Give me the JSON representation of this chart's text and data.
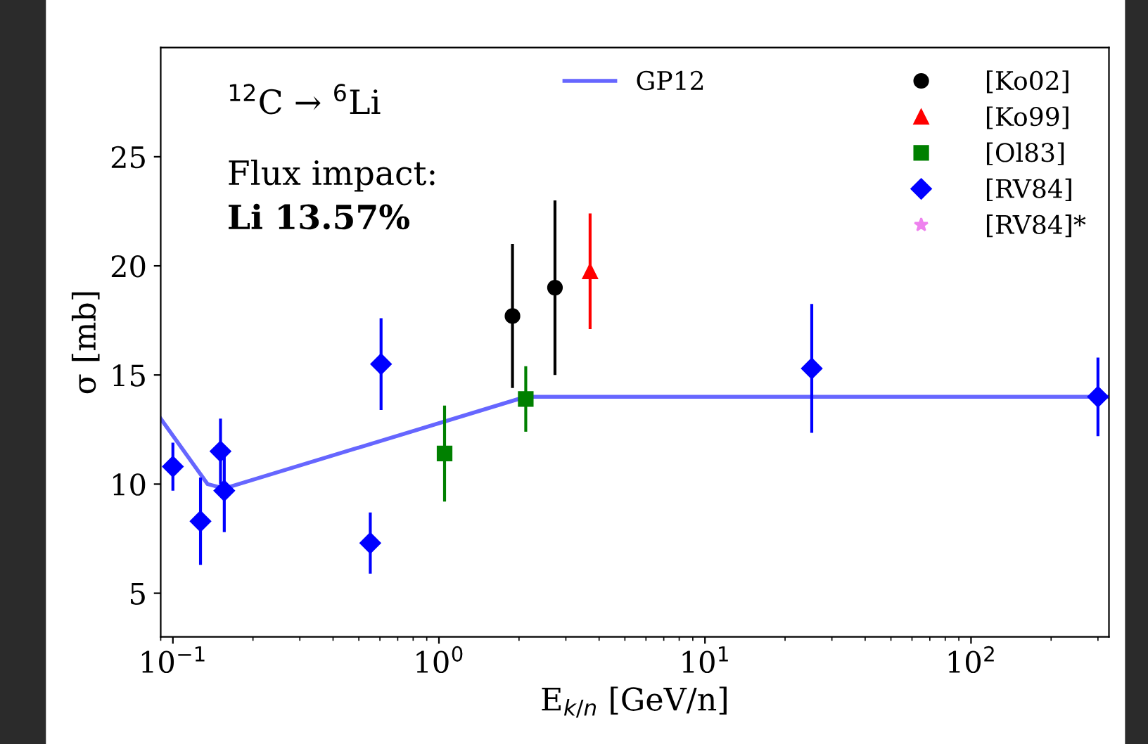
{
  "chart_data": {
    "type": "scatter",
    "xlabel": "E$_{k/n}$ [GeV/n]",
    "ylabel": "σ [mb]",
    "annotations": [
      "$^{12}$C → $^{6}$Li",
      "Flux impact:",
      "Li 13.57%"
    ],
    "log": "x",
    "xlim": [
      0.09,
      330
    ],
    "ylim": [
      3,
      30
    ],
    "xticks": [
      {
        "value": 0.1,
        "label": "10$^{−1}$"
      },
      {
        "value": 1,
        "label": "10$^{0}$"
      },
      {
        "value": 10,
        "label": "10$^{1}$"
      },
      {
        "value": 100,
        "label": "10$^{2}$"
      }
    ],
    "yticks": [
      5,
      10,
      15,
      20,
      25
    ],
    "grid": false,
    "legend": "top right",
    "series": [
      {
        "name": "GP12",
        "type": "line",
        "color": "#6666ff",
        "marker": "none",
        "line_style": "solid",
        "x": [
          0.09,
          0.135,
          0.156,
          2.12,
          330
        ],
        "values": [
          13.0,
          10.0,
          9.8,
          14.0,
          14.0
        ]
      },
      {
        "name": "[Ko02]",
        "color": "#000000",
        "marker": "circle",
        "x": [
          1.89,
          2.73
        ],
        "values": [
          17.7,
          19.0
        ],
        "errors": [
          3.3,
          4.0
        ]
      },
      {
        "name": "[Ko99]",
        "color": "#ff0000",
        "marker": "triangle",
        "x": [
          3.7
        ],
        "values": [
          19.75
        ],
        "errors": [
          2.65
        ]
      },
      {
        "name": "[Ol83]",
        "color": "#008000",
        "marker": "square",
        "x": [
          1.05,
          2.12
        ],
        "values": [
          11.4,
          13.9
        ],
        "errors": [
          2.2,
          1.5
        ]
      },
      {
        "name": "[RV84]",
        "color": "#0000ff",
        "marker": "diamond",
        "x": [
          0.1,
          0.127,
          0.151,
          0.156,
          0.552,
          0.606,
          25.2,
          300
        ],
        "values": [
          10.8,
          8.3,
          11.5,
          9.7,
          7.3,
          15.5,
          15.3,
          14.0
        ],
        "errors": [
          1.1,
          2.0,
          1.5,
          1.9,
          1.4,
          2.1,
          2.95,
          1.8
        ]
      },
      {
        "name": "[RV84]*",
        "color": "#ee82ee",
        "marker": "star"
      }
    ]
  }
}
